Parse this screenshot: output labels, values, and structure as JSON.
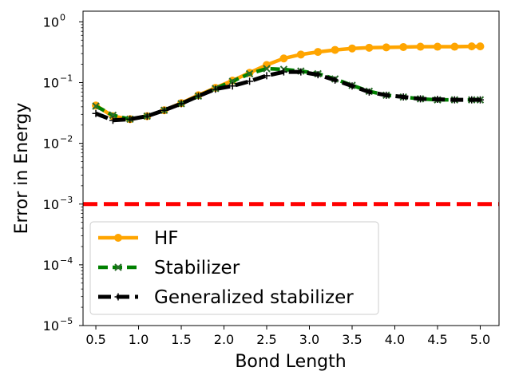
{
  "chart_data": {
    "type": "line",
    "xlabel": "Bond Length",
    "ylabel": "Error in Energy",
    "yscale": "log",
    "xlim": [
      0.35,
      5.22
    ],
    "ylim": [
      1e-05,
      1.5
    ],
    "xticks": [
      0.5,
      1.0,
      1.5,
      2.0,
      2.5,
      3.0,
      3.5,
      4.0,
      4.5,
      5.0
    ],
    "xtick_labels": [
      "0.5",
      "1.0",
      "1.5",
      "2.0",
      "2.5",
      "3.0",
      "3.5",
      "4.0",
      "4.5",
      "5.0"
    ],
    "yticks": [
      {
        "value": 1e-05,
        "base": "10",
        "exp": "−5"
      },
      {
        "value": 0.0001,
        "base": "10",
        "exp": "−4"
      },
      {
        "value": 0.001,
        "base": "10",
        "exp": "−3"
      },
      {
        "value": 0.01,
        "base": "10",
        "exp": "−2"
      },
      {
        "value": 0.1,
        "base": "10",
        "exp": "−1"
      },
      {
        "value": 1,
        "base": "10",
        "exp": "0"
      }
    ],
    "threshold": {
      "value": 0.001,
      "color": "#ff0000"
    },
    "legend_position": "lower-left",
    "series": [
      {
        "name": "HF",
        "color": "#ffa500",
        "marker": "circle",
        "linestyle": "solid",
        "x": [
          0.5,
          0.7,
          0.9,
          1.1,
          1.3,
          1.5,
          1.7,
          1.9,
          2.1,
          2.3,
          2.5,
          2.7,
          2.9,
          3.1,
          3.3,
          3.5,
          3.7,
          3.9,
          4.1,
          4.3,
          4.5,
          4.7,
          4.9,
          5.0
        ],
        "y": [
          0.042,
          0.028,
          0.025,
          0.028,
          0.035,
          0.046,
          0.062,
          0.082,
          0.108,
          0.145,
          0.195,
          0.25,
          0.29,
          0.32,
          0.345,
          0.365,
          0.375,
          0.38,
          0.385,
          0.39,
          0.39,
          0.39,
          0.395,
          0.395
        ]
      },
      {
        "name": "Stabilizer",
        "color": "#008000",
        "marker": "x",
        "linestyle": "dashed",
        "x": [
          0.5,
          0.7,
          0.9,
          1.1,
          1.3,
          1.5,
          1.7,
          1.9,
          2.1,
          2.3,
          2.5,
          2.7,
          2.9,
          3.1,
          3.3,
          3.5,
          3.7,
          3.9,
          4.1,
          4.3,
          4.5,
          4.7,
          4.9,
          5.0
        ],
        "y": [
          0.041,
          0.029,
          0.025,
          0.028,
          0.035,
          0.045,
          0.06,
          0.08,
          0.105,
          0.14,
          0.17,
          0.165,
          0.155,
          0.14,
          0.115,
          0.09,
          0.072,
          0.062,
          0.058,
          0.054,
          0.052,
          0.052,
          0.052,
          0.052
        ]
      },
      {
        "name": "Generalized stabilizer",
        "color": "#000000",
        "marker": "plus",
        "linestyle": "dashed",
        "x": [
          0.5,
          0.7,
          0.9,
          1.1,
          1.3,
          1.5,
          1.7,
          1.9,
          2.1,
          2.3,
          2.5,
          2.7,
          2.9,
          3.1,
          3.3,
          3.5,
          3.7,
          3.9,
          4.1,
          4.3,
          4.5,
          4.7,
          4.9,
          5.0
        ],
        "y": [
          0.031,
          0.024,
          0.025,
          0.028,
          0.035,
          0.045,
          0.06,
          0.078,
          0.088,
          0.105,
          0.13,
          0.15,
          0.15,
          0.135,
          0.11,
          0.088,
          0.07,
          0.062,
          0.058,
          0.054,
          0.053,
          0.052,
          0.052,
          0.052
        ]
      }
    ]
  }
}
